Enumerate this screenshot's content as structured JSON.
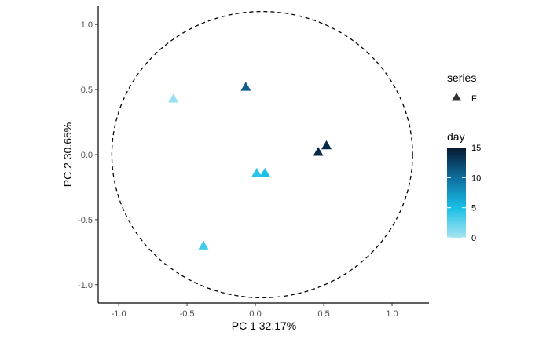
{
  "chart_data": {
    "type": "scatter",
    "xlabel": "PC 1 32.17%",
    "ylabel": "PC 2 30.65%",
    "xlim": [
      -1.15,
      1.27
    ],
    "ylim": [
      -1.14,
      1.14
    ],
    "x_ticks": [
      -1.0,
      -0.5,
      0.0,
      0.5,
      1.0
    ],
    "x_tick_labels": [
      "-1.0",
      "-0.5",
      "0.0",
      "0.5",
      "1.0"
    ],
    "y_ticks": [
      -1.0,
      -0.5,
      0.0,
      0.5,
      1.0
    ],
    "y_tick_labels": [
      "-1.0",
      "-0.5",
      "0.0",
      "0.5",
      "1.0"
    ],
    "grid": false,
    "circle": {
      "center": [
        0.05,
        0.0
      ],
      "radius": 1.1,
      "style": "dashed"
    },
    "shape_legend": {
      "title": "series",
      "items": [
        {
          "label": "F",
          "shape": "triangle",
          "color": "#333333"
        }
      ]
    },
    "color_legend": {
      "title": "day",
      "min": 0,
      "max": 15,
      "ticks": [
        0,
        5,
        10,
        15
      ],
      "tick_labels": [
        "0",
        "5",
        "10",
        "15"
      ],
      "colors": [
        "#a8e4ef",
        "#1ac0e8",
        "#0e6fa0",
        "#081830"
      ]
    },
    "legend_placement": "right",
    "points": [
      {
        "x": -0.6,
        "y": 0.43,
        "series": "F",
        "day": 0.5
      },
      {
        "x": -0.07,
        "y": 0.52,
        "series": "F",
        "day": 11
      },
      {
        "x": 0.46,
        "y": 0.02,
        "series": "F",
        "day": 14
      },
      {
        "x": 0.52,
        "y": 0.07,
        "series": "F",
        "day": 14
      },
      {
        "x": 0.01,
        "y": -0.14,
        "series": "F",
        "day": 4.5
      },
      {
        "x": 0.07,
        "y": -0.14,
        "series": "F",
        "day": 5
      },
      {
        "x": -0.38,
        "y": -0.7,
        "series": "F",
        "day": 3.5
      }
    ]
  }
}
